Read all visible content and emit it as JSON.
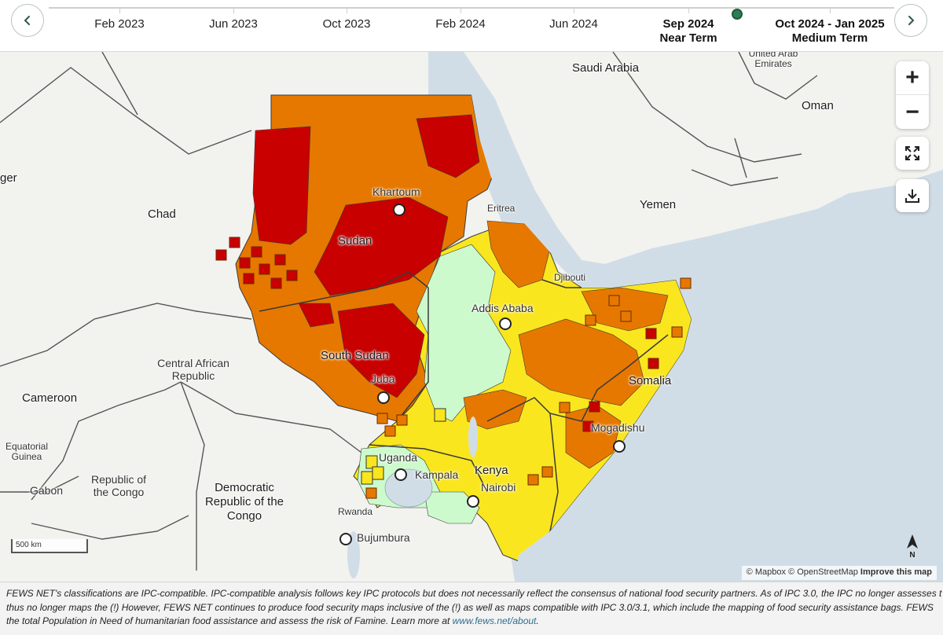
{
  "timeline": {
    "prev_label": "‹",
    "next_label": "›",
    "periods": [
      {
        "label": "Feb 2023",
        "sub": ""
      },
      {
        "label": "Jun 2023",
        "sub": ""
      },
      {
        "label": "Oct 2023",
        "sub": ""
      },
      {
        "label": "Feb 2024",
        "sub": ""
      },
      {
        "label": "Jun 2024",
        "sub": ""
      },
      {
        "label": "Sep 2024",
        "sub": "Near Term"
      },
      {
        "label": "Oct 2024 - Jan 2025",
        "sub": "Medium Term"
      }
    ],
    "selected": "Sep 2024"
  },
  "map": {
    "labels": {
      "saudi_arabia": "Saudi Arabia",
      "uae": "United Arab Emirates",
      "oman": "Oman",
      "yemen": "Yemen",
      "eritrea": "Eritrea",
      "djibouti": "Djibouti",
      "chad": "Chad",
      "niger": "ger",
      "car": "Central African Republic",
      "cameroon": "Cameroon",
      "eq_guinea": "Equatorial Guinea",
      "gabon": "Gabon",
      "rep_congo": "Republic of the Congo",
      "drc": "Democratic Republic of the Congo",
      "rwanda": "Rwanda",
      "uganda": "Uganda",
      "kenya": "Kenya",
      "sudan": "Sudan",
      "south_sudan": "South Sudan",
      "somalia": "Somalia",
      "khartoum": "Khartoum",
      "addis_ababa": "Addis Ababa",
      "juba": "Juba",
      "kampala": "Kampala",
      "nairobi": "Nairobi",
      "mogadishu": "Mogadishu",
      "bujumbura": "Bujumbura"
    },
    "controls": {
      "zoom_in": "+",
      "zoom_out": "−"
    },
    "scale": "500 km",
    "north": "N",
    "attribution": {
      "mapbox": "© Mapbox",
      "osm": "© OpenStreetMap",
      "improve": "Improve this map"
    },
    "colors": {
      "water": "#d1dde6",
      "land": "#f2f2ef",
      "ipc1": "#cdfacd",
      "ipc2": "#fae61e",
      "ipc3": "#e67800",
      "ipc4": "#c80000",
      "border": "#3a3a3a"
    }
  },
  "footer": {
    "line1": "FEWS NET's classifications are IPC-compatible. IPC-compatible analysis follows key IPC protocols but does not necessarily reflect the consensus of national food security partners. As of IPC 3.0, the IPC no longer assesses t",
    "line2": "thus no longer maps the (!) However, FEWS NET continues to produce food security maps inclusive of the (!) as well as maps compatible with IPC 3.0/3.1, which include the mapping of food security assistance bags. FEWS",
    "line3_pre": "the total Population in Need of humanitarian food assistance and assess the risk of Famine. Learn more at ",
    "link": "www.fews.net/about",
    "line3_post": "."
  }
}
